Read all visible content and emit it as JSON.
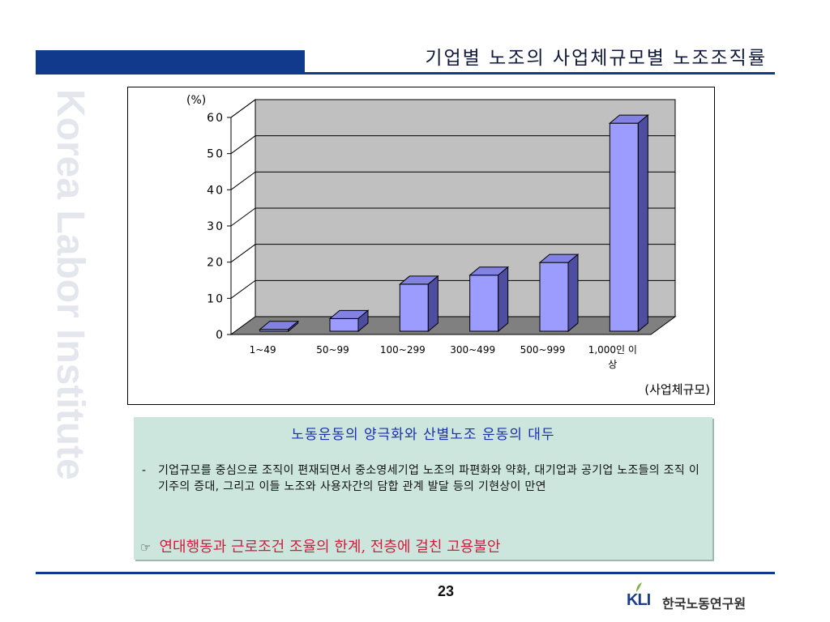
{
  "header": {
    "title": "기업별 노조의 사업체규모별 노조조직률"
  },
  "watermark": "Korea Labor Institute",
  "chart_data": {
    "type": "bar",
    "ylabel": "(%)",
    "xlabel": "(사업체규모)",
    "categories": [
      "1~49",
      "50~99",
      "100~299",
      "300~499",
      "500~999",
      "1,000인 이상"
    ],
    "category_lines": [
      [
        "1~49"
      ],
      [
        "50~99"
      ],
      [
        "100~299"
      ],
      [
        "300~499"
      ],
      [
        "500~999"
      ],
      [
        "1,000인 이",
        "상"
      ]
    ],
    "values": [
      0.5,
      3.5,
      13,
      15.5,
      19,
      57.5
    ],
    "y_ticks": [
      0,
      10,
      20,
      30,
      40,
      50,
      60
    ],
    "ylim": [
      0,
      60
    ],
    "grid": true,
    "colors": {
      "bar_front": "#9c9cff",
      "bar_top": "#8282e4",
      "bar_side": "#4e4ea0",
      "wall": "#c0c0c0",
      "floor": "#808080"
    }
  },
  "info": {
    "heading": "노동운동의 양극화와 산별노조 운동의 대두",
    "dash": "-",
    "body": "기업규모를 중심으로 조직이 편재되면서 중소영세기업 노조의 파편화와 약화, 대기업과 공기업 노조들의 조직 이기주의 증대, 그리고 이들 노조와 사용자간의 담합 관계 발달 등의 기현상이 만연",
    "note_icon": "☞",
    "note": "연대행동과 근로조건 조율의 한계, 전층에 걸친 고용불안"
  },
  "footer": {
    "page": "23",
    "logo_mark": "KLI",
    "logo_text": "한국노동연구원"
  }
}
